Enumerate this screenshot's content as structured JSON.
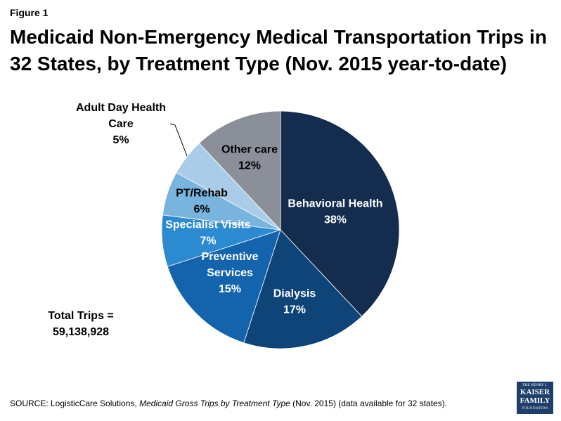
{
  "figure_label": "Figure 1",
  "title_line1": "Medicaid Non-Emergency Medical Transportation Trips in",
  "title_line2": "32 States, by Treatment Type (Nov. 2015 year-to-date)",
  "total_line1": "Total Trips =",
  "total_line2": "59,138,928",
  "source": {
    "prefix": "SOURCE: LogisticCare Solutions, ",
    "italic": "Medicaid Gross Trips by Treatment Type",
    "suffix": "  (Nov. 2015) (data available for 32 states)."
  },
  "logo": {
    "line1": "THE HENRY J.",
    "line2": "KAISER",
    "line3": "FAMILY",
    "line4": "FOUNDATION"
  },
  "chart_data": {
    "type": "pie",
    "title": "Medicaid Non-Emergency Medical Transportation Trips in 32 States, by Treatment Type (Nov. 2015 year-to-date)",
    "slices": [
      {
        "label": [
          "Behavioral Health"
        ],
        "value": 38,
        "display": "38%",
        "color": "#142d4f"
      },
      {
        "label": [
          "Dialysis"
        ],
        "value": 17,
        "display": "17%",
        "color": "#0f4479"
      },
      {
        "label": [
          "Preventive",
          "Services"
        ],
        "value": 15,
        "display": "15%",
        "color": "#1464ad"
      },
      {
        "label": [
          "Specialist Visits"
        ],
        "value": 7,
        "display": "7%",
        "color": "#2b8ad0"
      },
      {
        "label": [
          "PT/Rehab"
        ],
        "value": 6,
        "display": "6%",
        "color": "#79b4de"
      },
      {
        "label": [
          "Adult Day Health",
          "Care"
        ],
        "value": 5,
        "display": "5%",
        "color": "#a9cde8"
      },
      {
        "label": [
          "Other care"
        ],
        "value": 12,
        "display": "12%",
        "color": "#8a8f99"
      }
    ]
  }
}
